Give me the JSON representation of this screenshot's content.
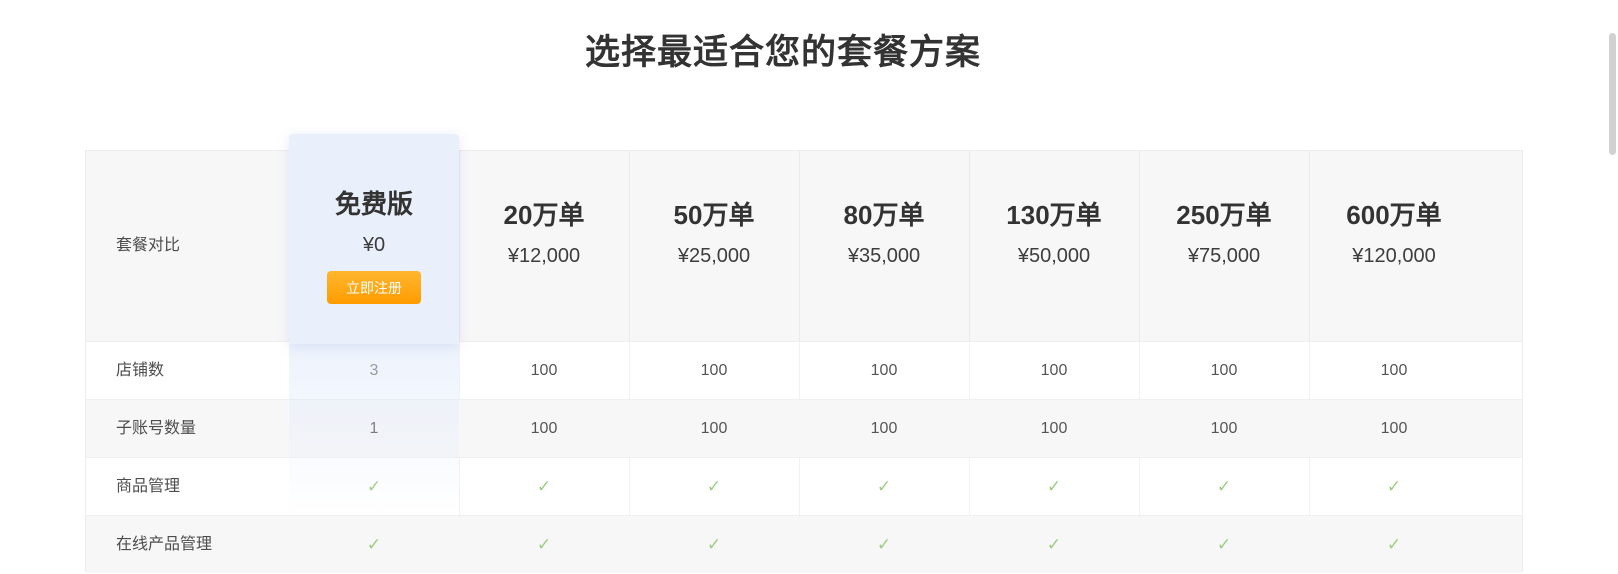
{
  "title": "选择最适合您的套餐方案",
  "table": {
    "corner_label": "套餐对比",
    "free_plan": {
      "name": "免费版",
      "price": "¥0",
      "cta": "立即注册"
    },
    "plans": [
      {
        "name": "20万单",
        "price": "¥12,000"
      },
      {
        "name": "50万单",
        "price": "¥25,000"
      },
      {
        "name": "80万单",
        "price": "¥35,000"
      },
      {
        "name": "130万单",
        "price": "¥50,000"
      },
      {
        "name": "250万单",
        "price": "¥75,000"
      },
      {
        "name": "600万单",
        "price": "¥120,000"
      }
    ],
    "rows": [
      {
        "label": "店铺数",
        "free": "3",
        "values": [
          "100",
          "100",
          "100",
          "100",
          "100",
          "100"
        ]
      },
      {
        "label": "子账号数量",
        "free": "1",
        "values": [
          "100",
          "100",
          "100",
          "100",
          "100",
          "100"
        ]
      },
      {
        "label": "商品管理",
        "free": "check",
        "values": [
          "check",
          "check",
          "check",
          "check",
          "check",
          "check"
        ]
      },
      {
        "label": "在线产品管理",
        "free": "check",
        "values": [
          "check",
          "check",
          "check",
          "check",
          "check",
          "check"
        ]
      }
    ]
  },
  "icons": {
    "check": "✓"
  },
  "colors": {
    "button_gradient_top": "#ffb62f",
    "button_gradient_bottom": "#ff9c00",
    "highlight_blue": "#e9effb",
    "check_green": "#9ccd83",
    "header_bg": "#f7f7f8",
    "title_text": "#333333"
  }
}
